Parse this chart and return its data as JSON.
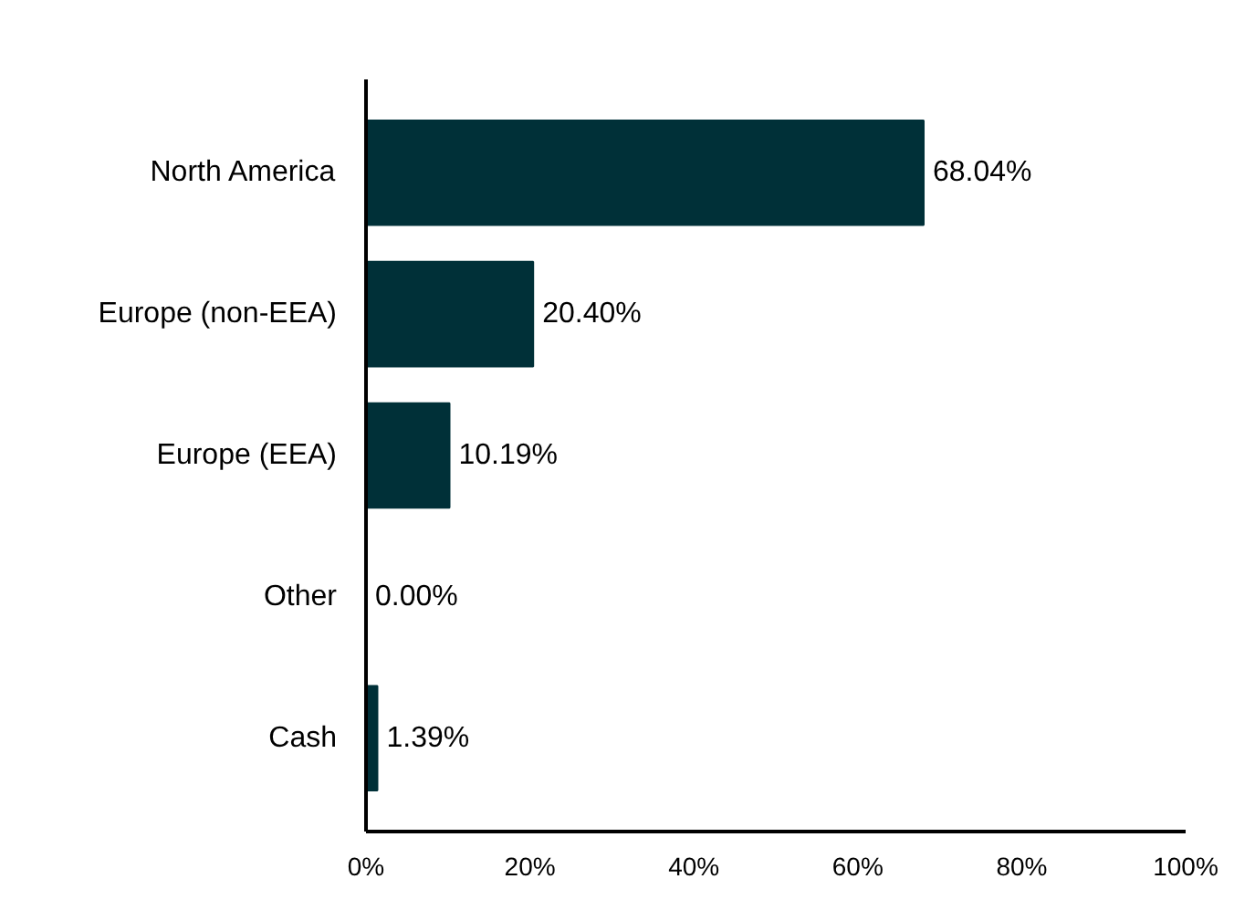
{
  "chart_data": {
    "type": "bar",
    "orientation": "horizontal",
    "categories": [
      "North America",
      "Europe (non-EEA)",
      "Europe (EEA)",
      "Other",
      "Cash"
    ],
    "values": [
      68.04,
      20.4,
      10.19,
      0.0,
      1.39
    ],
    "value_labels": [
      "68.04%",
      "20.40%",
      "10.19%",
      "0.00%",
      "1.39%"
    ],
    "color": "#003038",
    "xlim": [
      0,
      100
    ],
    "xticks": [
      {
        "value": 0,
        "label": "0%"
      },
      {
        "value": 20,
        "label": "20%"
      },
      {
        "value": 40,
        "label": "40%"
      },
      {
        "value": 60,
        "label": "60%"
      },
      {
        "value": 80,
        "label": "80%"
      },
      {
        "value": 100,
        "label": "100%"
      }
    ],
    "grid": false
  }
}
